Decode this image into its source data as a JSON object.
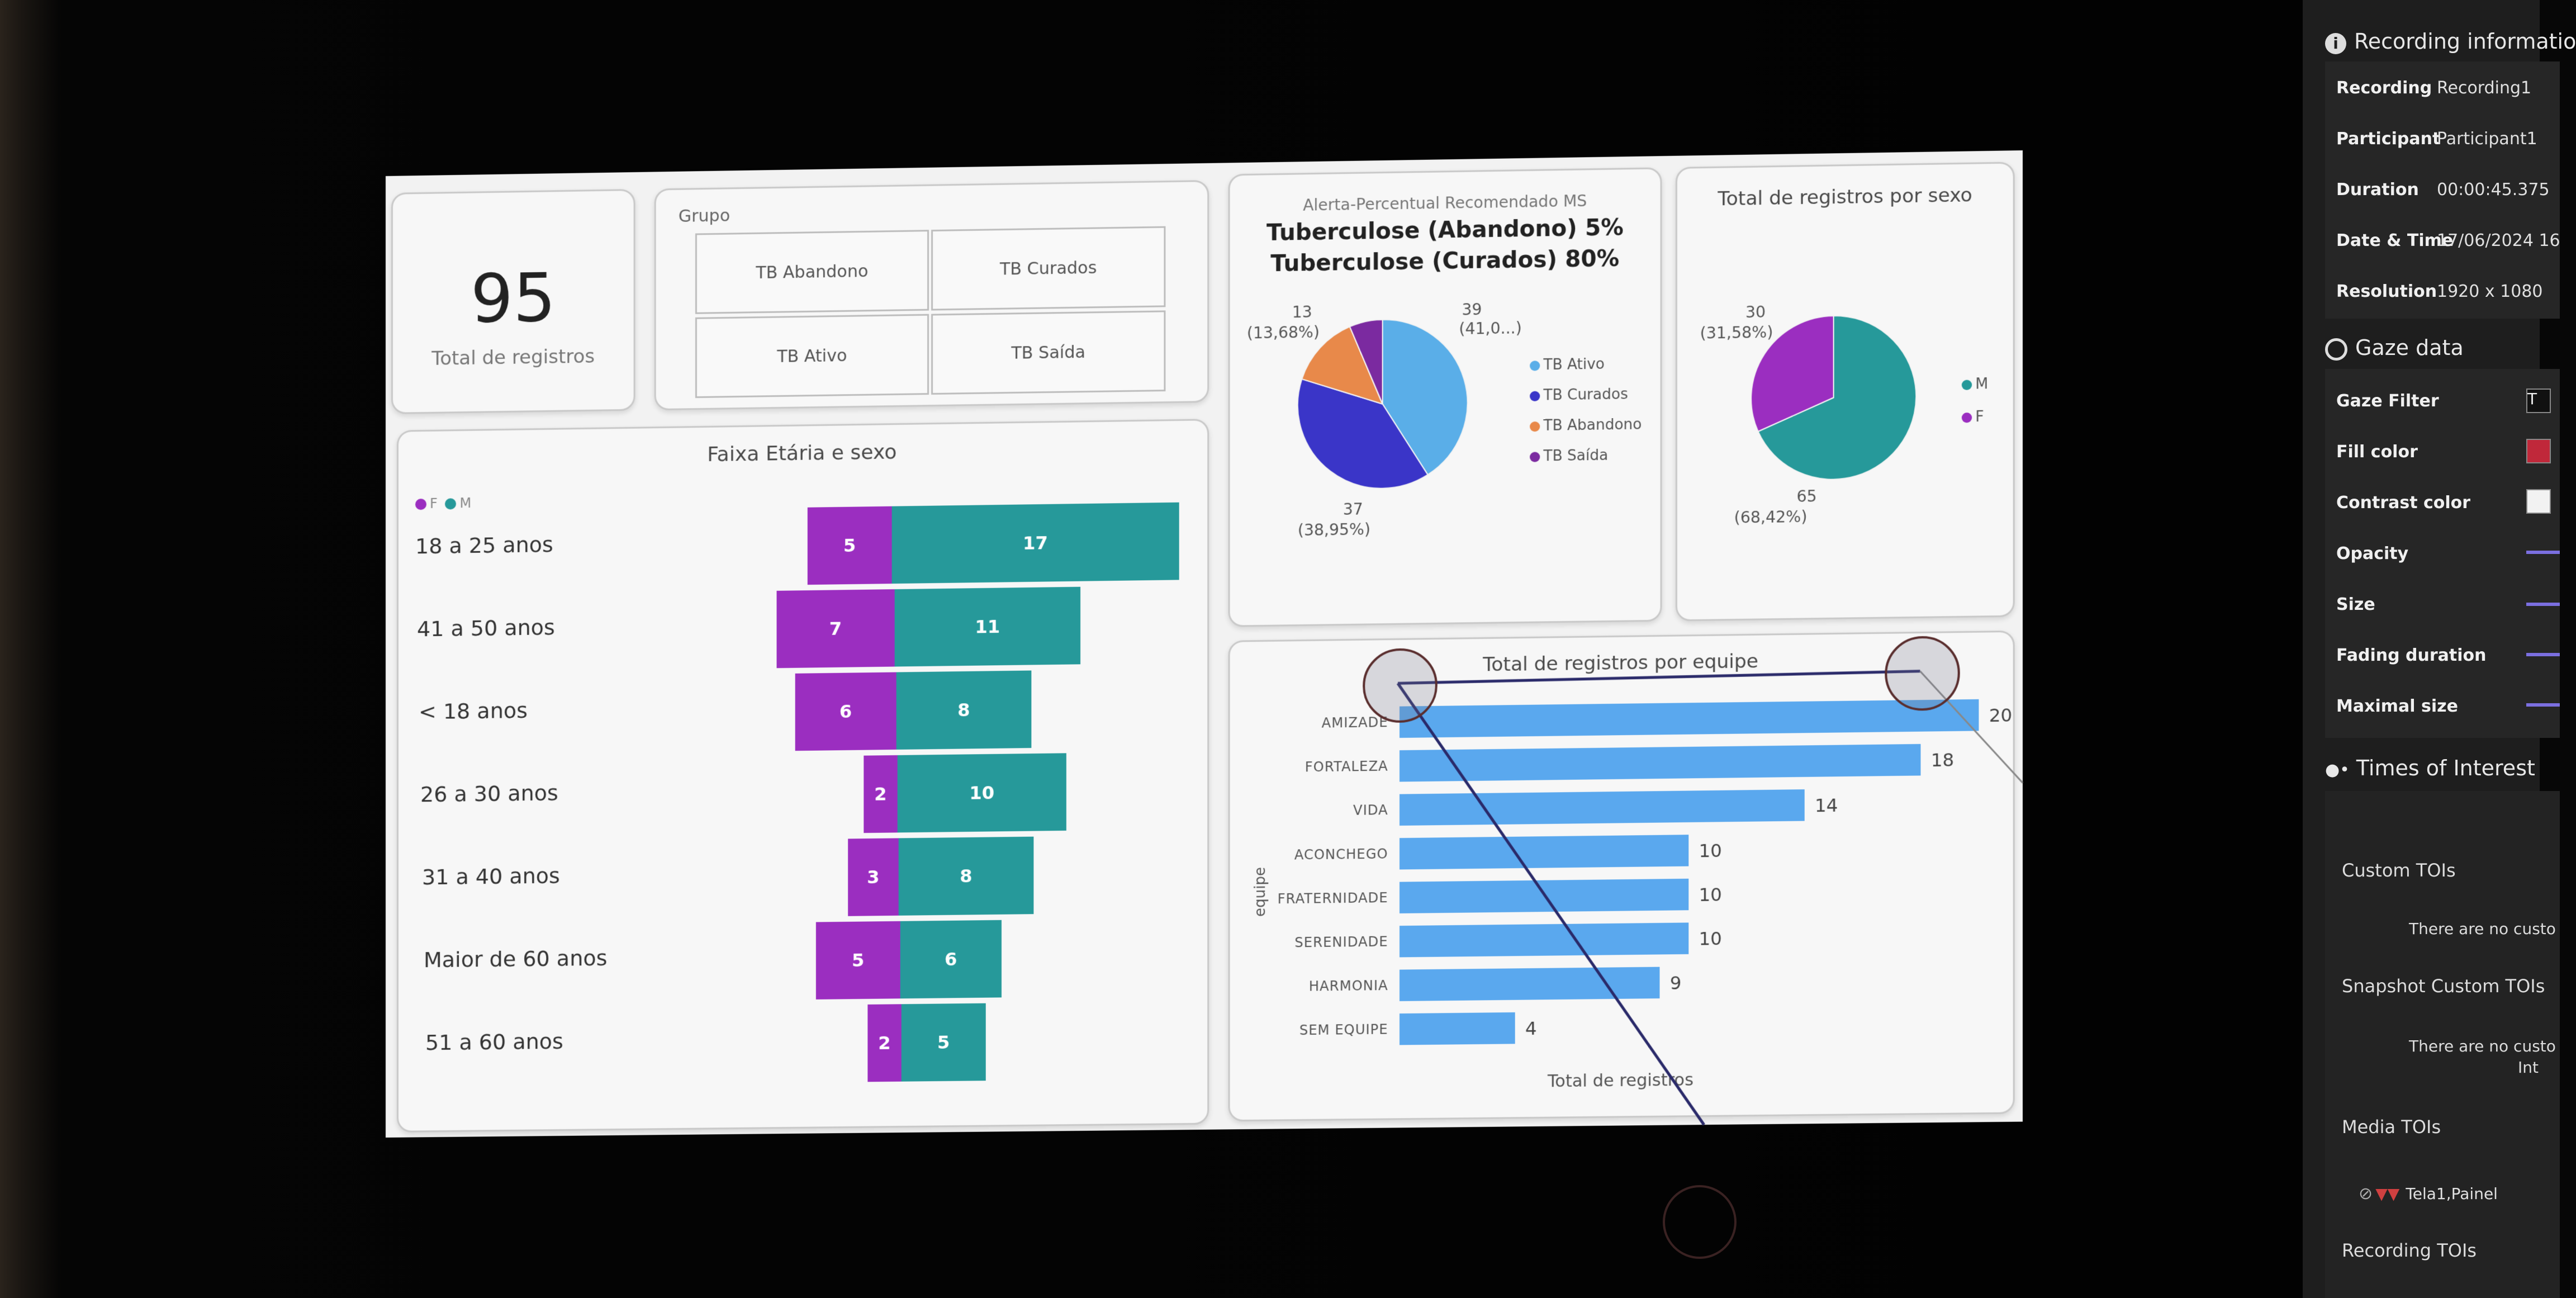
{
  "kpi": {
    "value": "95",
    "label": "Total de registros"
  },
  "slicer": {
    "title": "Grupo",
    "options": [
      "TB Abandono",
      "TB Curados",
      "TB Ativo",
      "TB Saída"
    ]
  },
  "age_chart": {
    "title": "Faixa Etária e sexo",
    "legend": [
      "F",
      "M"
    ]
  },
  "alert": {
    "title": "Alerta-Percentual Recomendado MS",
    "line1": "Tuberculose (Abandono) 5%",
    "line2": "Tuberculose (Curados) 80%"
  },
  "sex_chart": {
    "title": "Total de registros por sexo"
  },
  "team_chart": {
    "title": "Total de registros por equipe",
    "ylabel": "equipe",
    "xlabel": "Total de registros"
  },
  "colors": {
    "female": "#9b2ec0",
    "male": "#26999a",
    "tb_ativo": "#5aaee8",
    "tb_curados": "#3a35c8",
    "tb_abandono": "#e8894a",
    "tb_saida": "#7b2aa0",
    "team_bar": "#5aa8ee"
  },
  "chart_data": [
    {
      "type": "bar",
      "title": "Faixa Etária e sexo",
      "orientation": "horizontal-butterfly",
      "categories": [
        "18 a 25 anos",
        "41 a 50 anos",
        "< 18 anos",
        "26 a 30 anos",
        "31 a 40 anos",
        "Maior de 60 anos",
        "51 a 60 anos"
      ],
      "series": [
        {
          "name": "F",
          "values": [
            5,
            7,
            6,
            2,
            3,
            5,
            2
          ]
        },
        {
          "name": "M",
          "values": [
            17,
            11,
            8,
            10,
            8,
            6,
            5
          ]
        }
      ],
      "legend": "top-left"
    },
    {
      "type": "pie",
      "labels": [
        "TB Ativo",
        "TB Curados",
        "TB Abandono",
        "TB Saída"
      ],
      "values": [
        39,
        37,
        13,
        6
      ],
      "callouts": [
        "39",
        "(41,0...)",
        "37",
        "(38,95%)",
        "13",
        "(13,68%)"
      ],
      "legend": "right"
    },
    {
      "type": "pie",
      "title": "Total de registros por sexo",
      "labels": [
        "M",
        "F"
      ],
      "values": [
        65,
        30
      ],
      "callouts": [
        "30",
        "(31,58%)",
        "65",
        "(68,42%)"
      ],
      "legend": "right"
    },
    {
      "type": "bar",
      "title": "Total de registros por equipe",
      "orientation": "horizontal",
      "categories": [
        "AMIZADE",
        "FORTALEZA",
        "VIDA",
        "ACONCHEGO",
        "FRATERNIDADE",
        "SERENIDADE",
        "HARMONIA",
        "SEM EQUIPE"
      ],
      "values": [
        20,
        18,
        14,
        10,
        10,
        10,
        9,
        4
      ],
      "xlabel": "Total de registros",
      "ylabel": "equipe"
    }
  ],
  "panel": {
    "recording_info": {
      "header": "Recording informatio",
      "rows": [
        {
          "label": "Recording",
          "value": "Recording1"
        },
        {
          "label": "Participant",
          "value": "Participant1"
        },
        {
          "label": "Duration",
          "value": "00:00:45.375"
        },
        {
          "label": "Date & Time",
          "value": "17/06/2024 16"
        },
        {
          "label": "Resolution",
          "value": "1920 x 1080"
        }
      ]
    },
    "gaze": {
      "header": "Gaze data",
      "rows": [
        "Gaze Filter",
        "Fill color",
        "Contrast color",
        "Opacity",
        "Size",
        "Fading duration",
        "Maximal size"
      ],
      "filter_value": "T",
      "fill_color": "#c0283a",
      "contrast_color": "#f2f2f2"
    },
    "tois": {
      "header": "Times of Interest",
      "custom": "Custom TOIs",
      "custom_empty": "There are no custo",
      "snapshot": "Snapshot Custom TOIs",
      "snapshot_empty1": "There are no custo",
      "snapshot_empty2": "Int",
      "media": "Media TOIs",
      "media_item": "Tela1,Painel",
      "recording": "Recording TOIs"
    }
  }
}
